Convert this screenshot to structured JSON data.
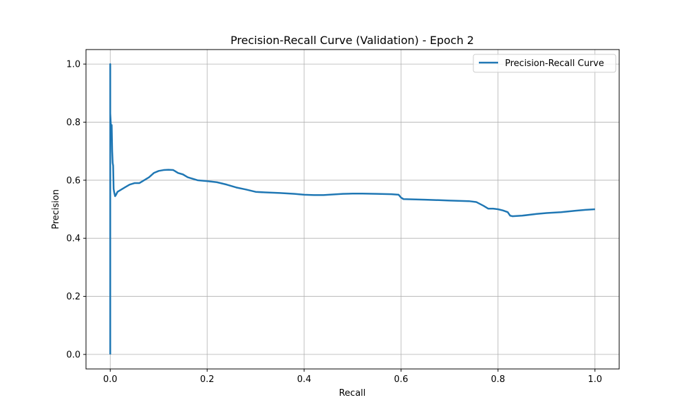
{
  "chart_data": {
    "type": "line",
    "title": "Precision-Recall Curve (Validation) - Epoch 2",
    "xlabel": "Recall",
    "ylabel": "Precision",
    "xlim": [
      -0.05,
      1.05
    ],
    "ylim": [
      -0.05,
      1.05
    ],
    "xticks": [
      0.0,
      0.2,
      0.4,
      0.6,
      0.8,
      1.0
    ],
    "yticks": [
      0.0,
      0.2,
      0.4,
      0.6,
      0.8,
      1.0
    ],
    "xtick_labels": [
      "0.0",
      "0.2",
      "0.4",
      "0.6",
      "0.8",
      "1.0"
    ],
    "ytick_labels": [
      "0.0",
      "0.2",
      "0.4",
      "0.6",
      "0.8",
      "1.0"
    ],
    "grid": true,
    "legend_position": "top-right",
    "series": [
      {
        "name": "Precision-Recall Curve",
        "color": "#1f77b4",
        "x": [
          0.0,
          0.0,
          0.0,
          0.001,
          0.002,
          0.003,
          0.004,
          0.005,
          0.006,
          0.007,
          0.008,
          0.01,
          0.012,
          0.015,
          0.02,
          0.025,
          0.03,
          0.04,
          0.05,
          0.06,
          0.07,
          0.08,
          0.09,
          0.1,
          0.11,
          0.12,
          0.13,
          0.14,
          0.15,
          0.16,
          0.18,
          0.2,
          0.22,
          0.24,
          0.26,
          0.28,
          0.3,
          0.32,
          0.35,
          0.38,
          0.4,
          0.42,
          0.44,
          0.46,
          0.48,
          0.5,
          0.52,
          0.55,
          0.58,
          0.595,
          0.6,
          0.605,
          0.65,
          0.7,
          0.74,
          0.755,
          0.77,
          0.78,
          0.79,
          0.8,
          0.81,
          0.82,
          0.825,
          0.83,
          0.85,
          0.88,
          0.9,
          0.93,
          0.96,
          0.98,
          1.0
        ],
        "y": [
          0.0,
          1.0,
          0.83,
          0.8,
          0.77,
          0.79,
          0.7,
          0.66,
          0.65,
          0.57,
          0.56,
          0.545,
          0.55,
          0.56,
          0.565,
          0.57,
          0.575,
          0.585,
          0.59,
          0.59,
          0.6,
          0.61,
          0.625,
          0.632,
          0.635,
          0.636,
          0.635,
          0.625,
          0.62,
          0.61,
          0.6,
          0.597,
          0.593,
          0.585,
          0.575,
          0.568,
          0.56,
          0.558,
          0.556,
          0.553,
          0.55,
          0.549,
          0.549,
          0.551,
          0.553,
          0.554,
          0.554,
          0.553,
          0.552,
          0.55,
          0.54,
          0.535,
          0.533,
          0.53,
          0.528,
          0.525,
          0.512,
          0.502,
          0.502,
          0.5,
          0.496,
          0.49,
          0.478,
          0.476,
          0.478,
          0.484,
          0.487,
          0.49,
          0.495,
          0.498,
          0.5
        ]
      }
    ]
  }
}
